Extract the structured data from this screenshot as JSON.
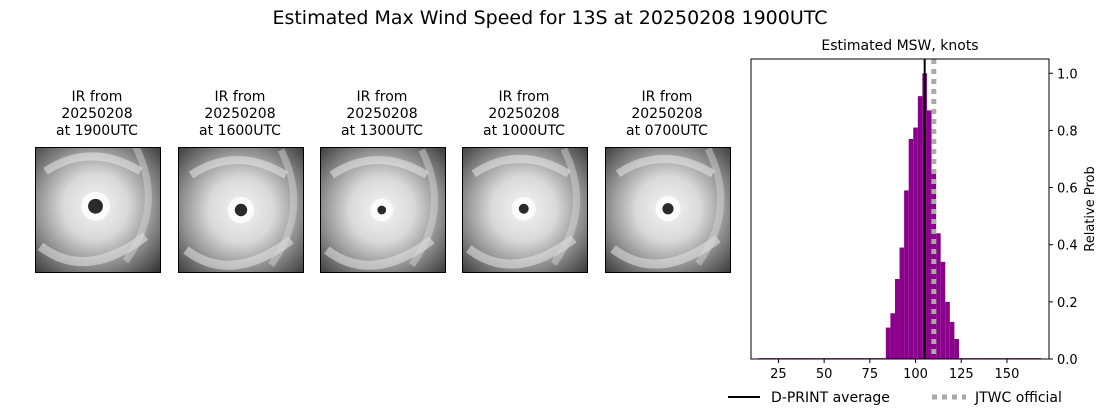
{
  "title": "Estimated Max Wind Speed for 13S at 20250208 1900UTC",
  "ir_images": [
    {
      "line1": "IR from",
      "line2": "20250208",
      "line3": "at 1900UTC",
      "eye": [
        0.48,
        0.47
      ],
      "eye_r": 0.06
    },
    {
      "line1": "IR from",
      "line2": "20250208",
      "line3": "at 1600UTC",
      "eye": [
        0.5,
        0.5
      ],
      "eye_r": 0.05
    },
    {
      "line1": "IR from",
      "line2": "20250208",
      "line3": "at 1300UTC",
      "eye": [
        0.49,
        0.5
      ],
      "eye_r": 0.035
    },
    {
      "line1": "IR from",
      "line2": "20250208",
      "line3": "at 1000UTC",
      "eye": [
        0.49,
        0.49
      ],
      "eye_r": 0.04
    },
    {
      "line1": "IR from",
      "line2": "20250208",
      "line3": "at 0700UTC",
      "eye": [
        0.5,
        0.49
      ],
      "eye_r": 0.045
    }
  ],
  "chart_data": {
    "type": "bar",
    "title": "Estimated MSW, knots",
    "xlabel": "",
    "ylabel": "Relative Prob",
    "xlim": [
      10,
      173
    ],
    "ylim": [
      0,
      1.05
    ],
    "x_ticks": [
      25,
      50,
      75,
      100,
      125,
      150
    ],
    "y_ticks": [
      0.0,
      0.2,
      0.4,
      0.6,
      0.8,
      1.0
    ],
    "y_tick_labels": [
      "0.0",
      "0.2",
      "0.4",
      "0.6",
      "0.8",
      "1.0"
    ],
    "y_axis_side": "right",
    "bar_width": 2.5,
    "color": "#8b008b",
    "bins": [
      {
        "x": 15,
        "y": 0.003
      },
      {
        "x": 17.5,
        "y": 0.003
      },
      {
        "x": 20,
        "y": 0.003
      },
      {
        "x": 22.5,
        "y": 0.003
      },
      {
        "x": 25,
        "y": 0.003
      },
      {
        "x": 27.5,
        "y": 0.003
      },
      {
        "x": 30,
        "y": 0.003
      },
      {
        "x": 32.5,
        "y": 0.003
      },
      {
        "x": 35,
        "y": 0.003
      },
      {
        "x": 37.5,
        "y": 0.003
      },
      {
        "x": 40,
        "y": 0.003
      },
      {
        "x": 42.5,
        "y": 0.003
      },
      {
        "x": 45,
        "y": 0.003
      },
      {
        "x": 47.5,
        "y": 0.003
      },
      {
        "x": 50,
        "y": 0.003
      },
      {
        "x": 52.5,
        "y": 0.003
      },
      {
        "x": 55,
        "y": 0.003
      },
      {
        "x": 57.5,
        "y": 0.003
      },
      {
        "x": 60,
        "y": 0.003
      },
      {
        "x": 62.5,
        "y": 0.003
      },
      {
        "x": 65,
        "y": 0.003
      },
      {
        "x": 67.5,
        "y": 0.003
      },
      {
        "x": 70,
        "y": 0.003
      },
      {
        "x": 72.5,
        "y": 0.003
      },
      {
        "x": 75,
        "y": 0.003
      },
      {
        "x": 77.5,
        "y": 0.003
      },
      {
        "x": 80,
        "y": 0.003
      },
      {
        "x": 82.5,
        "y": 0.003
      },
      {
        "x": 85,
        "y": 0.11
      },
      {
        "x": 87.5,
        "y": 0.16
      },
      {
        "x": 90,
        "y": 0.28
      },
      {
        "x": 92.5,
        "y": 0.39
      },
      {
        "x": 95,
        "y": 0.59
      },
      {
        "x": 97.5,
        "y": 0.77
      },
      {
        "x": 100,
        "y": 0.81
      },
      {
        "x": 102.5,
        "y": 0.92
      },
      {
        "x": 105,
        "y": 1.0
      },
      {
        "x": 107.5,
        "y": 0.87
      },
      {
        "x": 110,
        "y": 0.66
      },
      {
        "x": 112.5,
        "y": 0.44
      },
      {
        "x": 115,
        "y": 0.34
      },
      {
        "x": 117.5,
        "y": 0.2
      },
      {
        "x": 120,
        "y": 0.13
      },
      {
        "x": 122.5,
        "y": 0.07
      },
      {
        "x": 125,
        "y": 0.003
      },
      {
        "x": 127.5,
        "y": 0.003
      },
      {
        "x": 130,
        "y": 0.003
      },
      {
        "x": 132.5,
        "y": 0.003
      },
      {
        "x": 135,
        "y": 0.003
      },
      {
        "x": 137.5,
        "y": 0.003
      },
      {
        "x": 140,
        "y": 0.003
      },
      {
        "x": 142.5,
        "y": 0.003
      },
      {
        "x": 145,
        "y": 0.003
      },
      {
        "x": 147.5,
        "y": 0.003
      },
      {
        "x": 150,
        "y": 0.003
      },
      {
        "x": 152.5,
        "y": 0.003
      },
      {
        "x": 155,
        "y": 0.003
      },
      {
        "x": 157.5,
        "y": 0.003
      },
      {
        "x": 160,
        "y": 0.003
      },
      {
        "x": 162.5,
        "y": 0.003
      },
      {
        "x": 165,
        "y": 0.003
      },
      {
        "x": 167.5,
        "y": 0.003
      }
    ],
    "reference_lines": [
      {
        "name": "D-PRINT average",
        "x": 105,
        "color": "#000000",
        "style": "solid"
      },
      {
        "name": "JTWC official",
        "x": 110,
        "color": "#aaaaaa",
        "style": "dotted"
      }
    ],
    "legend_placement": "bottom-right"
  }
}
